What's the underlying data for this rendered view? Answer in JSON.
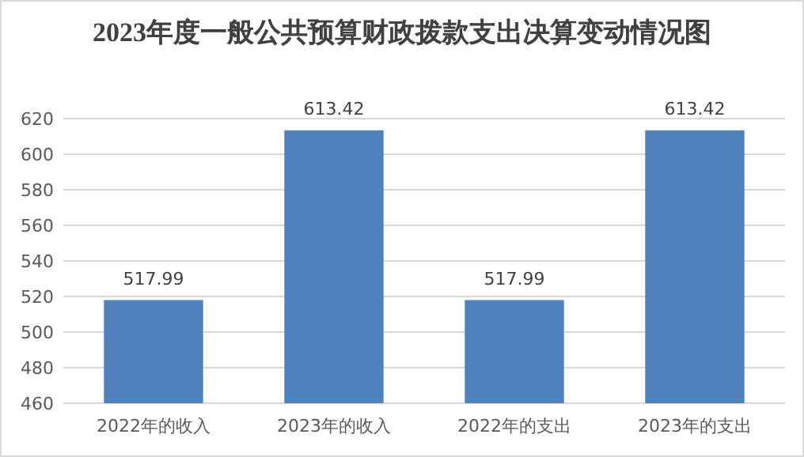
{
  "chart_data": {
    "type": "bar",
    "title": "2023年度一般公共预算财政拨款支出决算变动情况图",
    "categories": [
      "2022年的收入",
      "2023年的收入",
      "2022年的支出",
      "2023年的支出"
    ],
    "values": [
      517.99,
      613.42,
      517.99,
      613.42
    ],
    "color": "#4f81bd",
    "ylim": [
      460,
      620
    ],
    "yticks": [
      460,
      480,
      500,
      520,
      540,
      560,
      580,
      600,
      620
    ],
    "grid": "y",
    "data_labels": true
  }
}
